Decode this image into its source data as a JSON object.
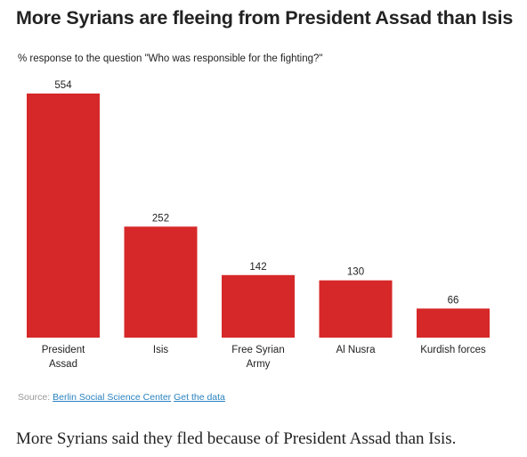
{
  "title": "More Syrians are fleeing from President Assad than Isis",
  "subtitle": "% response to the question \"Who was responsible for the fighting?\"",
  "source": {
    "prefix": "Source:",
    "link_label": "Berlin Social Science Center",
    "data_link_label": "Get the data"
  },
  "caption": "More Syrians said they fled because of President Assad than Isis.",
  "colors": {
    "bar": "#d62828",
    "text": "#222222",
    "source": "#999999",
    "link": "#2b83c0"
  },
  "chart_data": {
    "type": "bar",
    "categories": [
      [
        "President",
        "Assad"
      ],
      [
        "Isis"
      ],
      [
        "Free Syrian",
        "Army"
      ],
      [
        "Al Nusra"
      ],
      [
        "Kurdish forces"
      ]
    ],
    "values": [
      554,
      252,
      142,
      130,
      66
    ],
    "value_labels": [
      "554",
      "252",
      "142",
      "130",
      "66"
    ],
    "title": "More Syrians are fleeing from President Assad than Isis",
    "xlabel": "",
    "ylabel": "",
    "ylim": [
      0,
      554
    ],
    "grid": false,
    "legend": "none"
  }
}
